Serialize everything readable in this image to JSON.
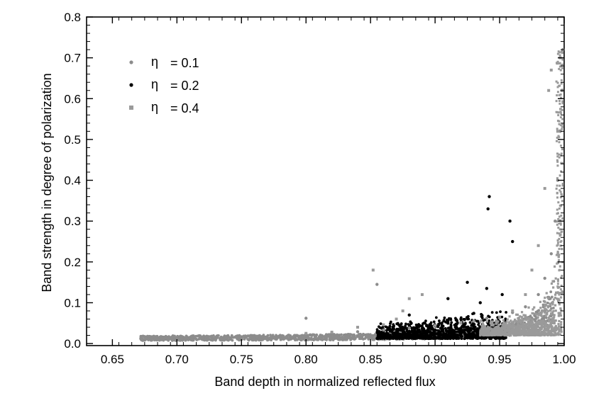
{
  "chart_data": {
    "type": "scatter",
    "title": "",
    "xlabel": "Band depth in normalized reflected flux",
    "ylabel": "Band strength in degree of polarization",
    "xlim": [
      0.63,
      1.0
    ],
    "ylim": [
      -0.005,
      0.8
    ],
    "xticks": [
      "0.65",
      "0.70",
      "0.75",
      "0.80",
      "0.85",
      "0.90",
      "0.95",
      "1.00"
    ],
    "yticks": [
      "0.0",
      "0.1",
      "0.2",
      "0.3",
      "0.4",
      "0.5",
      "0.6",
      "0.7",
      "0.8"
    ],
    "grid": false,
    "legend_position": "top-left",
    "series": [
      {
        "name": "η = 0.1",
        "legend_symbol": "η",
        "legend_value": "= 0.1",
        "color": "#8c8c8c",
        "marker": "small-circle",
        "points": [
          [
            0.672,
            0.012
          ],
          [
            0.68,
            0.012
          ],
          [
            0.69,
            0.013
          ],
          [
            0.7,
            0.014
          ],
          [
            0.72,
            0.015
          ],
          [
            0.74,
            0.016
          ],
          [
            0.76,
            0.018
          ],
          [
            0.78,
            0.02
          ],
          [
            0.8,
            0.023
          ],
          [
            0.82,
            0.026
          ],
          [
            0.84,
            0.029
          ],
          [
            0.86,
            0.033
          ],
          [
            0.88,
            0.038
          ],
          [
            0.9,
            0.044
          ],
          [
            0.92,
            0.052
          ],
          [
            0.94,
            0.062
          ],
          [
            0.96,
            0.076
          ],
          [
            0.97,
            0.09
          ],
          [
            0.98,
            0.12
          ],
          [
            0.985,
            0.16
          ],
          [
            0.99,
            0.22
          ],
          [
            0.993,
            0.3
          ],
          [
            0.995,
            0.4
          ],
          [
            0.997,
            0.52
          ],
          [
            0.998,
            0.62
          ],
          [
            0.999,
            0.72
          ],
          [
            0.8,
            0.062
          ],
          [
            0.855,
            0.145
          ]
        ]
      },
      {
        "name": "η = 0.2",
        "legend_symbol": "η",
        "legend_value": "= 0.2",
        "color": "#000000",
        "marker": "small-circle",
        "points": [
          [
            0.86,
            0.02
          ],
          [
            0.87,
            0.024
          ],
          [
            0.88,
            0.03
          ],
          [
            0.89,
            0.036
          ],
          [
            0.9,
            0.043
          ],
          [
            0.91,
            0.05
          ],
          [
            0.92,
            0.06
          ],
          [
            0.93,
            0.074
          ],
          [
            0.935,
            0.1
          ],
          [
            0.94,
            0.135
          ],
          [
            0.941,
            0.33
          ],
          [
            0.942,
            0.36
          ],
          [
            0.952,
            0.12
          ],
          [
            0.958,
            0.3
          ],
          [
            0.96,
            0.25
          ],
          [
            0.925,
            0.15
          ],
          [
            0.91,
            0.11
          ],
          [
            0.88,
            0.07
          ]
        ]
      },
      {
        "name": "η = 0.4",
        "legend_symbol": "η",
        "legend_value": "= 0.4",
        "color": "#9a9a9a",
        "marker": "small-square",
        "points": [
          [
            0.8,
            0.025
          ],
          [
            0.82,
            0.028
          ],
          [
            0.84,
            0.04
          ],
          [
            0.86,
            0.046
          ],
          [
            0.87,
            0.06
          ],
          [
            0.875,
            0.08
          ],
          [
            0.88,
            0.11
          ],
          [
            0.89,
            0.12
          ],
          [
            0.9,
            0.044
          ],
          [
            0.92,
            0.05
          ],
          [
            0.93,
            0.055
          ],
          [
            0.95,
            0.065
          ],
          [
            0.96,
            0.08
          ],
          [
            0.97,
            0.12
          ],
          [
            0.975,
            0.18
          ],
          [
            0.98,
            0.24
          ],
          [
            0.985,
            0.38
          ],
          [
            0.988,
            0.62
          ],
          [
            0.99,
            0.67
          ],
          [
            0.995,
            0.52
          ],
          [
            0.997,
            0.7
          ],
          [
            0.852,
            0.18
          ]
        ]
      }
    ]
  }
}
